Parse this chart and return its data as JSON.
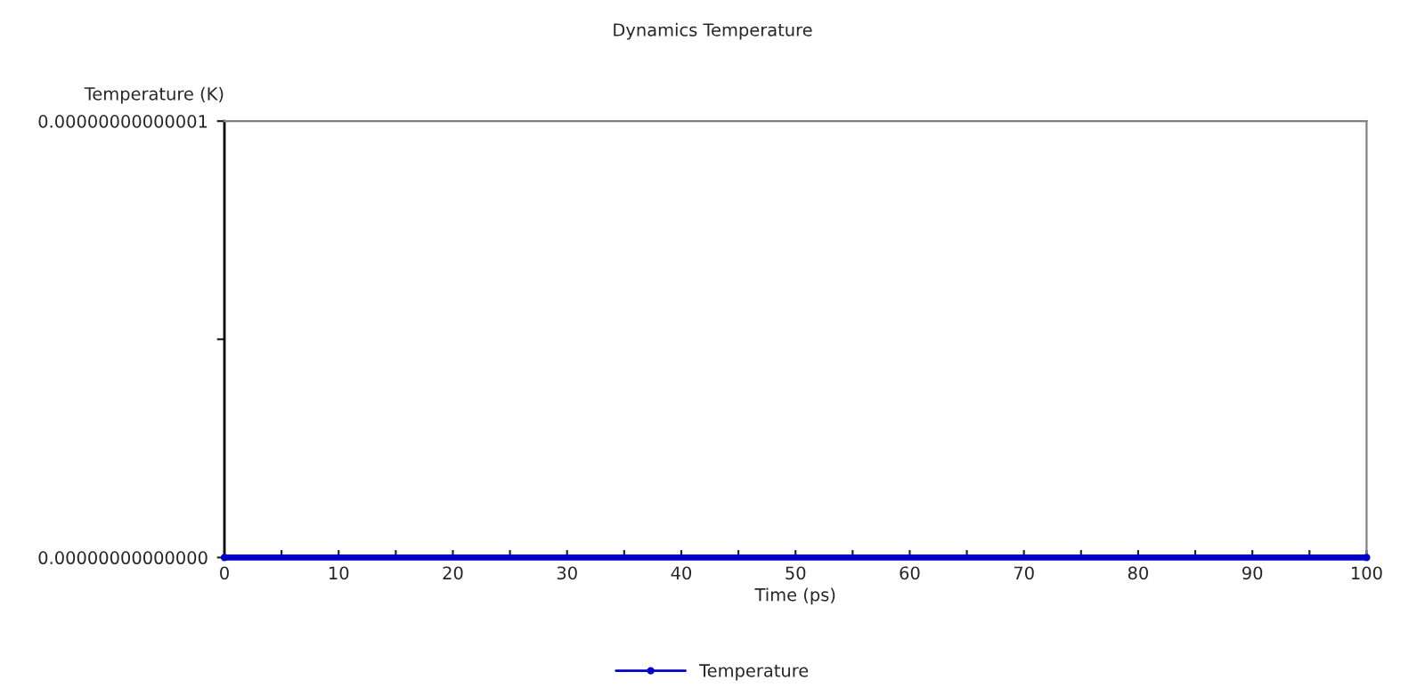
{
  "chart_data": {
    "type": "line",
    "title": "Dynamics Temperature",
    "xlabel": "Time (ps)",
    "ylabel": "Temperature (K)",
    "series": [
      {
        "name": "Temperature",
        "color": "#0000cc",
        "x": [
          0,
          100
        ],
        "values": [
          0,
          0
        ]
      }
    ],
    "xlim": [
      0,
      100
    ],
    "xticks": [
      0,
      {
        "value": 5,
        "label": null
      },
      10,
      {
        "value": 15,
        "label": null
      },
      20,
      {
        "value": 25,
        "label": null
      },
      30,
      {
        "value": 35,
        "label": null
      },
      40,
      {
        "value": 45,
        "label": null
      },
      50,
      {
        "value": 55,
        "label": null
      },
      60,
      {
        "value": 65,
        "label": null
      },
      70,
      {
        "value": 75,
        "label": null
      },
      80,
      {
        "value": 85,
        "label": null
      },
      90,
      {
        "value": 95,
        "label": null
      },
      100
    ],
    "ylim": [
      0,
      1e-14
    ],
    "yticks": [
      {
        "value": 0,
        "label": "0.00000000000000"
      },
      {
        "value": 5e-15,
        "label": null
      },
      {
        "value": 1e-14,
        "label": "0.00000000000001"
      }
    ],
    "legend": "bottom",
    "marker": "circle",
    "line_style": "solid",
    "grid": false
  }
}
